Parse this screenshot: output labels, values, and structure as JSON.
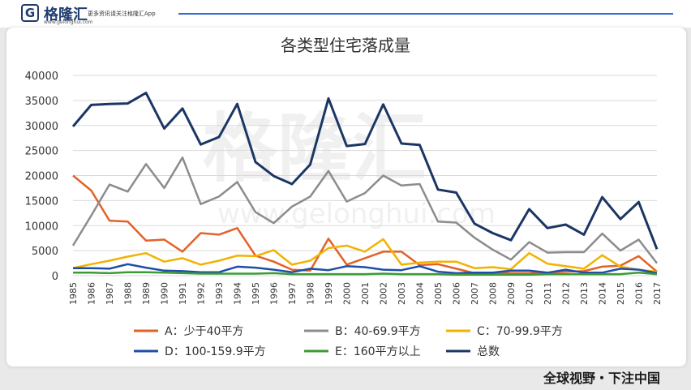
{
  "header": {
    "brand_icon": "G",
    "brand_name": "格隆汇",
    "brand_url": "www.gelonghui.com",
    "slogan": "更多资讯请关注格隆汇App"
  },
  "watermark": {
    "cn": "格隆汇",
    "url": "www.gelonghui.com"
  },
  "footer": {
    "text": "全球视野・下注中国"
  },
  "chart_data": {
    "type": "line",
    "title": "各类型住宅落成量",
    "xlabel": "",
    "ylabel": "",
    "x": [
      "1985",
      "1986",
      "1987",
      "1988",
      "1989",
      "1990",
      "1991",
      "1992",
      "1993",
      "1994",
      "1995",
      "1996",
      "1997",
      "1998",
      "1999",
      "2000",
      "2001",
      "2002",
      "2003",
      "2004",
      "2005",
      "2006",
      "2007",
      "2008",
      "2009",
      "2010",
      "2011",
      "2012",
      "2013",
      "2014",
      "2015",
      "2016",
      "2017"
    ],
    "ylim": [
      0,
      40000
    ],
    "yticks": [
      0,
      5000,
      10000,
      15000,
      20000,
      25000,
      30000,
      35000,
      40000
    ],
    "grid": true,
    "legend_position": "bottom",
    "series": [
      {
        "name": "A：少于40平方",
        "color": "#e2622a",
        "values": [
          20000,
          17000,
          11000,
          10800,
          7000,
          7200,
          4800,
          8500,
          8200,
          9500,
          4000,
          2800,
          1200,
          1000,
          7400,
          2200,
          3500,
          4800,
          4800,
          2100,
          2300,
          1400,
          500,
          500,
          500,
          500,
          600,
          800,
          900,
          1800,
          2000,
          3900,
          800
        ]
      },
      {
        "name": "B：40-69.9平方",
        "color": "#8c8c8c",
        "values": [
          6000,
          12000,
          18200,
          16800,
          22300,
          17500,
          23600,
          14300,
          15800,
          18700,
          12700,
          10500,
          13800,
          15800,
          20900,
          14800,
          16500,
          20000,
          18000,
          18300,
          10800,
          10600,
          7600,
          5200,
          3200,
          6700,
          4600,
          4700,
          4700,
          8400,
          5000,
          7200,
          2500
        ]
      },
      {
        "name": "C：70-99.9平方",
        "color": "#f2b200",
        "values": [
          1500,
          2300,
          3000,
          3800,
          4500,
          2800,
          3500,
          2200,
          3000,
          4000,
          3900,
          5100,
          2200,
          3000,
          5500,
          6000,
          4800,
          7300,
          2200,
          2600,
          2800,
          2800,
          1500,
          1700,
          1300,
          4500,
          2400,
          1900,
          1400,
          4100,
          1800,
          1200,
          800
        ]
      },
      {
        "name": "D：100-159.9平方",
        "color": "#1f4ea8",
        "values": [
          1500,
          1500,
          1400,
          2300,
          1600,
          1000,
          900,
          700,
          700,
          1800,
          1600,
          1200,
          700,
          1400,
          1100,
          1900,
          1700,
          1200,
          1100,
          1900,
          800,
          500,
          600,
          600,
          1000,
          1000,
          600,
          1200,
          600,
          600,
          1400,
          1200,
          500
        ]
      },
      {
        "name": "E：160平方以上",
        "color": "#3d9a37",
        "values": [
          600,
          600,
          500,
          700,
          700,
          600,
          500,
          400,
          400,
          400,
          400,
          500,
          300,
          300,
          300,
          300,
          300,
          400,
          300,
          300,
          300,
          200,
          200,
          200,
          200,
          200,
          300,
          300,
          300,
          300,
          300,
          600,
          300
        ]
      },
      {
        "name": "总数",
        "color": "#1c3664",
        "values": [
          29800,
          34100,
          34300,
          34400,
          36500,
          29400,
          33400,
          26200,
          27700,
          34300,
          22700,
          19900,
          18300,
          22200,
          35400,
          25900,
          26300,
          34200,
          26400,
          26100,
          17200,
          16600,
          10400,
          8500,
          7100,
          13300,
          9500,
          10200,
          8200,
          15700,
          11300,
          14700,
          5300
        ]
      }
    ]
  }
}
